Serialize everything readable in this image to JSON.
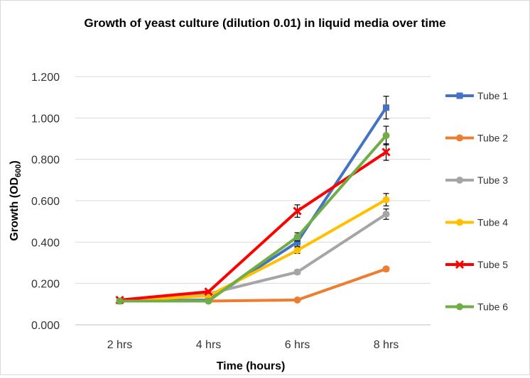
{
  "chart_data": {
    "type": "line",
    "title": "Growth of yeast culture (dilution 0.01) in liquid media over time",
    "xlabel": "Time (hours)",
    "ylabel": {
      "main": "Growth (OD",
      "subscript": "600",
      "close": ")"
    },
    "categories": [
      "2 hrs",
      "4 hrs",
      "6 hrs",
      "8 hrs"
    ],
    "ylim": [
      0,
      1.2
    ],
    "yticks": [
      "0.000",
      "0.200",
      "0.400",
      "0.600",
      "0.800",
      "1.000",
      "1.200"
    ],
    "grid": true,
    "legend_position": "right",
    "series": [
      {
        "name": "Tube 1",
        "color": "#4472C4",
        "marker": "square",
        "values": [
          0.115,
          0.12,
          0.4,
          1.05
        ],
        "errors": [
          0.005,
          0.005,
          0.02,
          0.055
        ]
      },
      {
        "name": "Tube 2",
        "color": "#ED7D31",
        "marker": "circle",
        "values": [
          0.115,
          0.115,
          0.12,
          0.27
        ],
        "errors": [
          0.005,
          0.005,
          0.005,
          0.01
        ]
      },
      {
        "name": "Tube 3",
        "color": "#A5A5A5",
        "marker": "circle",
        "values": [
          0.115,
          0.15,
          0.255,
          0.535
        ],
        "errors": [
          0.005,
          0.005,
          0.01,
          0.025
        ]
      },
      {
        "name": "Tube 4",
        "color": "#FFC000",
        "marker": "circle",
        "values": [
          0.115,
          0.14,
          0.36,
          0.605
        ],
        "errors": [
          0.005,
          0.005,
          0.015,
          0.03
        ]
      },
      {
        "name": "Tube 5",
        "color": "#FF0000",
        "marker": "x",
        "values": [
          0.12,
          0.16,
          0.55,
          0.835
        ],
        "errors": [
          0.005,
          0.008,
          0.03,
          0.04
        ]
      },
      {
        "name": "Tube 6",
        "color": "#70AD47",
        "marker": "circle",
        "values": [
          0.115,
          0.115,
          0.425,
          0.915
        ],
        "errors": [
          0.005,
          0.005,
          0.02,
          0.045
        ]
      }
    ]
  }
}
